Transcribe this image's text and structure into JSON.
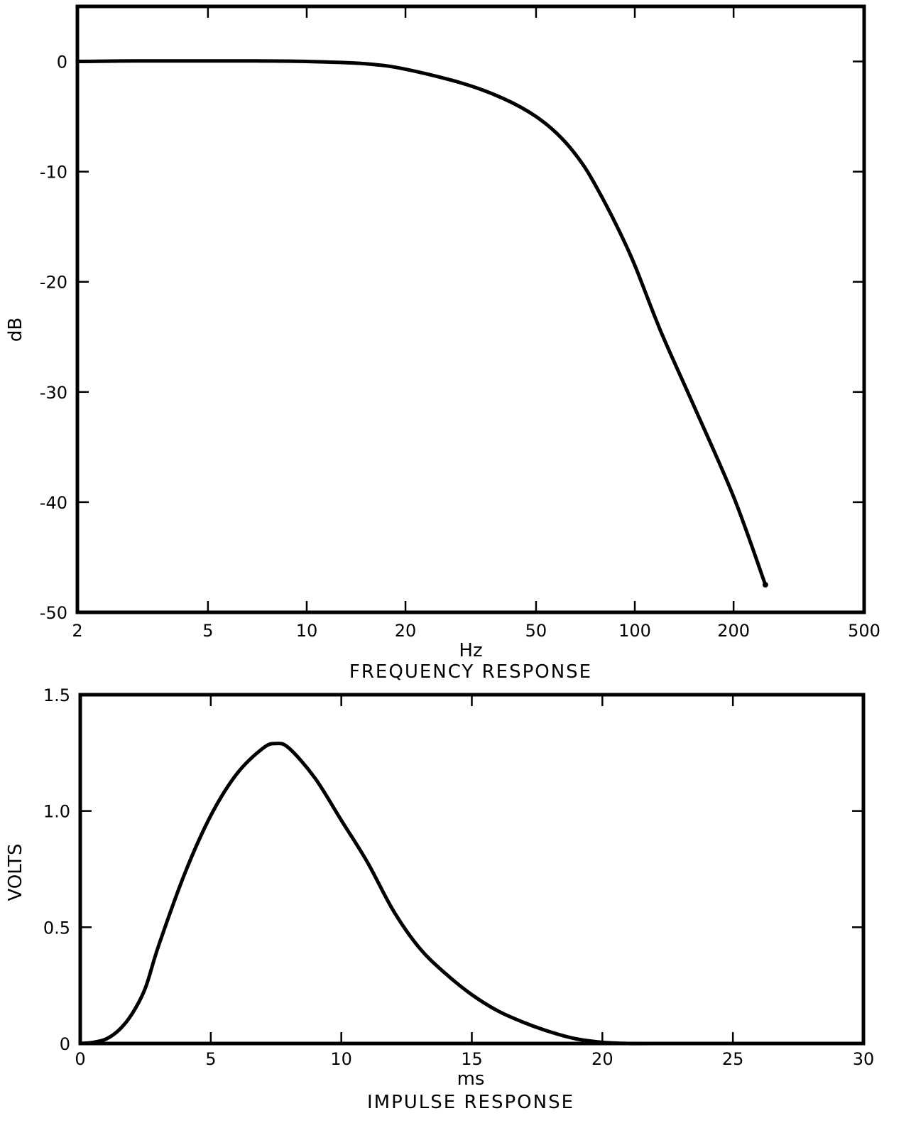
{
  "chart_data": [
    {
      "type": "line",
      "caption": "FREQUENCY RESPONSE",
      "xlabel": "Hz",
      "ylabel": "dB",
      "xscale": "log",
      "xlim": [
        2,
        500
      ],
      "ylim": [
        -50,
        5
      ],
      "grid": false,
      "x_ticks": [
        2,
        5,
        10,
        20,
        50,
        100,
        200,
        500
      ],
      "x_tick_labels": [
        "2",
        "5",
        "10",
        "20",
        "50",
        "100",
        "200",
        "500"
      ],
      "y_ticks": [
        0,
        -10,
        -20,
        -30,
        -40,
        -50
      ],
      "y_tick_labels": [
        "0",
        "-10",
        "-20",
        "-30",
        "-40",
        "-50"
      ],
      "series": [
        {
          "x": [
            2,
            3,
            5,
            7,
            10,
            15,
            20,
            30,
            40,
            50,
            60,
            70,
            80,
            90,
            100,
            120,
            150,
            200,
            250
          ],
          "y": [
            0,
            0.05,
            0.05,
            0.05,
            0,
            -0.2,
            -0.7,
            -2,
            -3.4,
            -5,
            -7,
            -9.5,
            -12.5,
            -15.5,
            -18.5,
            -24.5,
            -31,
            -39.5,
            -47.5
          ]
        }
      ]
    },
    {
      "type": "line",
      "caption": "IMPULSE RESPONSE",
      "xlabel": "ms",
      "ylabel": "VOLTS",
      "xlim": [
        0,
        30
      ],
      "ylim": [
        0,
        1.5
      ],
      "grid": false,
      "x_ticks": [
        0,
        5,
        10,
        15,
        20,
        25,
        30
      ],
      "x_tick_labels": [
        "0",
        "5",
        "10",
        "15",
        "20",
        "25",
        "30"
      ],
      "y_ticks": [
        0,
        0.5,
        1.0,
        1.5
      ],
      "y_tick_labels": [
        "0",
        "0.5",
        "1.0",
        "1.5"
      ],
      "series": [
        {
          "x": [
            0,
            0.5,
            1,
            1.5,
            2,
            2.5,
            3,
            4,
            5,
            6,
            7,
            7.5,
            8,
            9,
            10,
            11,
            12,
            13,
            14,
            15,
            16,
            17,
            18,
            19,
            20,
            21,
            22,
            30
          ],
          "y": [
            0,
            0.005,
            0.02,
            0.06,
            0.13,
            0.24,
            0.42,
            0.73,
            0.98,
            1.16,
            1.27,
            1.29,
            1.27,
            1.14,
            0.96,
            0.78,
            0.57,
            0.41,
            0.3,
            0.21,
            0.14,
            0.09,
            0.05,
            0.02,
            0.005,
            0,
            0,
            0
          ]
        }
      ]
    }
  ]
}
